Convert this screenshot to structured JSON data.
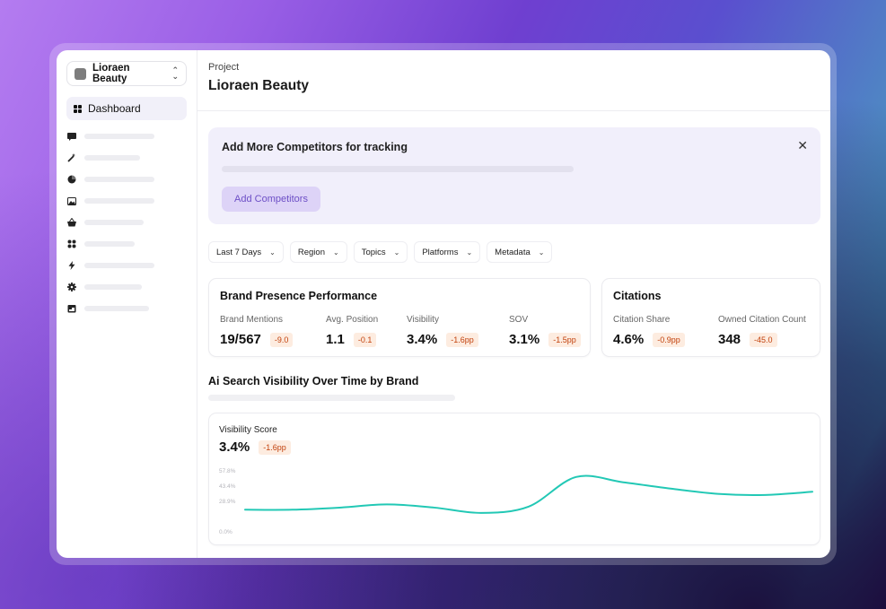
{
  "sidebar": {
    "project_name": "Lioraen Beauty",
    "active_item": {
      "label": "Dashboard",
      "icon": "grid-icon"
    },
    "items": [
      {
        "icon": "message-icon"
      },
      {
        "icon": "magic-wand-icon"
      },
      {
        "icon": "pie-chart-icon"
      },
      {
        "icon": "image-icon"
      },
      {
        "icon": "basket-icon"
      },
      {
        "icon": "apps-icon"
      },
      {
        "icon": "bolt-icon"
      },
      {
        "icon": "settings-icon"
      },
      {
        "icon": "calendar-icon"
      }
    ]
  },
  "header": {
    "breadcrumb": "Project",
    "title": "Lioraen Beauty"
  },
  "banner": {
    "title": "Add More Competitors for tracking",
    "button_label": "Add Competitors"
  },
  "filters": [
    {
      "label": "Last 7 Days"
    },
    {
      "label": "Region"
    },
    {
      "label": "Topics"
    },
    {
      "label": "Platforms"
    },
    {
      "label": "Metadata"
    }
  ],
  "brand_presence": {
    "title": "Brand Presence Performance",
    "metrics": [
      {
        "label": "Brand Mentions",
        "value": "19/567",
        "delta": "-9.0"
      },
      {
        "label": "Avg. Position",
        "value": "1.1",
        "delta": "-0.1"
      },
      {
        "label": "Visibility",
        "value": "3.4%",
        "delta": "-1.6pp"
      },
      {
        "label": "SOV",
        "value": "3.1%",
        "delta": "-1.5pp"
      }
    ]
  },
  "citations": {
    "title": "Citations",
    "metrics": [
      {
        "label": "Citation Share",
        "value": "4.6%",
        "delta": "-0.9pp"
      },
      {
        "label": "Owned Citation Count",
        "value": "348",
        "delta": "-45.0"
      }
    ]
  },
  "visibility_section": {
    "title": "Ai Search Visibility Over Time by Brand"
  },
  "chart": {
    "label": "Visibility Score",
    "value": "3.4%",
    "delta": "-1.6pp"
  },
  "colors": {
    "accent": "#6d4fc6",
    "line": "#22c8b5",
    "negative": "#c2410c"
  },
  "chart_data": {
    "type": "line",
    "title": "Visibility Score",
    "ylim": [
      0,
      57.8
    ],
    "yticks": [
      "0.0%",
      "28.9%",
      "43.4%",
      "57.8%"
    ],
    "ytick_values": [
      0,
      28.9,
      43.4,
      57.8
    ],
    "series": [
      {
        "x": [
          0,
          1,
          2,
          3,
          4,
          5,
          6,
          7,
          8,
          9,
          10,
          11,
          12
        ],
        "values": [
          21,
          21,
          23,
          26,
          23,
          18,
          24,
          52,
          47,
          41,
          36,
          35,
          38
        ]
      }
    ]
  }
}
